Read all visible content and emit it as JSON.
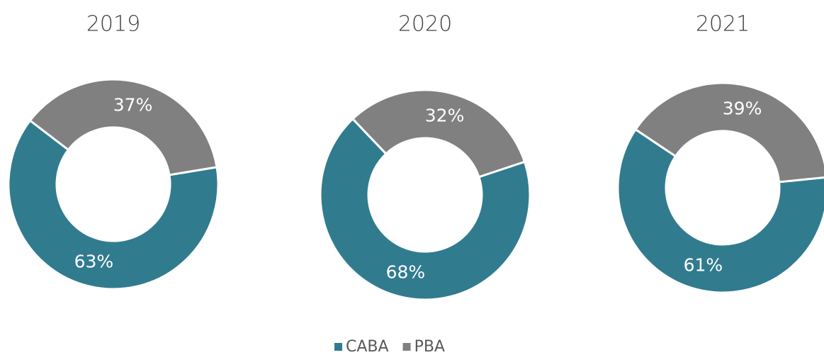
{
  "chart_data": [
    {
      "type": "pie",
      "title": "2019",
      "categories": [
        "CABA",
        "PBA"
      ],
      "values": [
        63,
        37
      ],
      "value_labels": [
        "63%",
        "37%"
      ],
      "colors": [
        "#317b8f",
        "#808080"
      ]
    },
    {
      "type": "pie",
      "title": "2020",
      "categories": [
        "CABA",
        "PBA"
      ],
      "values": [
        68,
        32
      ],
      "value_labels": [
        "68%",
        "32%"
      ],
      "colors": [
        "#317b8f",
        "#808080"
      ]
    },
    {
      "type": "pie",
      "title": "2021",
      "categories": [
        "CABA",
        "PBA"
      ],
      "values": [
        61,
        39
      ],
      "value_labels": [
        "61%",
        "39%"
      ],
      "colors": [
        "#317b8f",
        "#808080"
      ]
    }
  ]
}
